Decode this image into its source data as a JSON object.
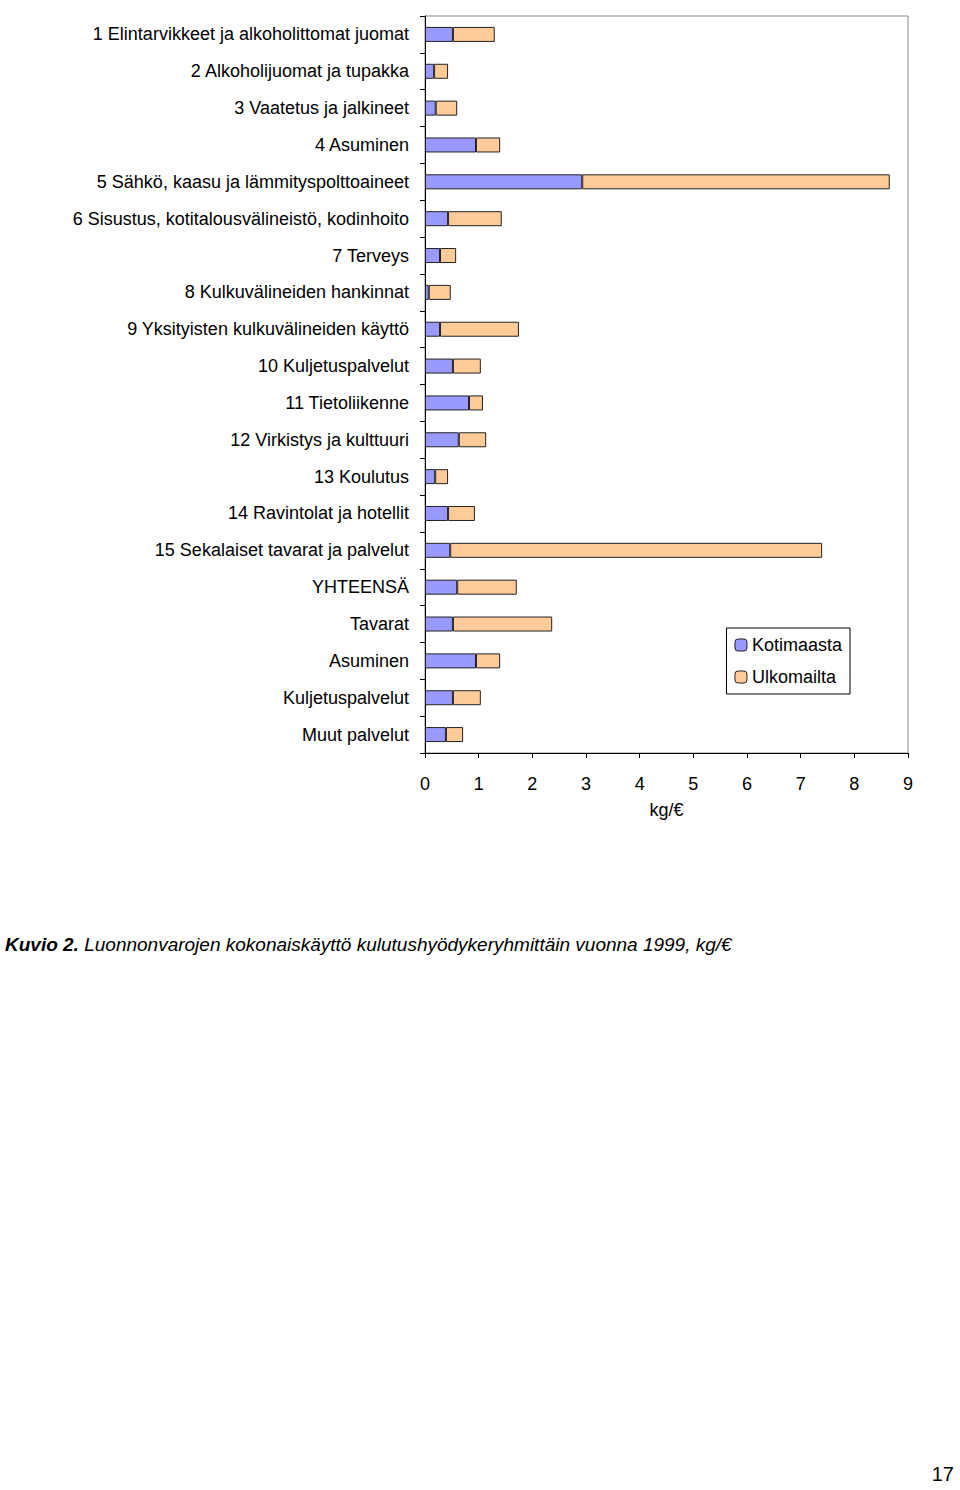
{
  "chart_data": {
    "type": "bar",
    "orientation": "horizontal",
    "stacked": true,
    "categories": [
      "1 Elintarvikkeet ja alkoholittomat juomat",
      "2 Alkoholijuomat ja tupakka",
      "3 Vaatetus ja jalkineet",
      "4 Asuminen",
      "5 Sähkö, kaasu ja lämmityspolttoaineet",
      "6 Sisustus, kotitalousvälineistö, kodinhoito",
      "7 Terveys",
      "8 Kulkuvälineiden hankinnat",
      "9 Yksityisten kulkuvälineiden käyttö",
      "10 Kuljetuspalvelut",
      "11 Tietoliikenne",
      "12 Virkistys ja kulttuuri",
      "13 Koulutus",
      "14 Ravintolat ja hotellit",
      "15 Sekalaiset tavarat ja palvelut",
      "YHTEENSÄ",
      "Tavarat",
      "Asuminen",
      "Kuljetuspalvelut",
      "Muut palvelut"
    ],
    "series": [
      {
        "name": "Kotimaasta",
        "color": "#9999ff",
        "values": [
          0.52,
          0.17,
          0.2,
          0.95,
          2.93,
          0.43,
          0.28,
          0.07,
          0.28,
          0.52,
          0.82,
          0.63,
          0.19,
          0.43,
          0.47,
          0.6,
          0.52,
          0.95,
          0.52,
          0.39
        ]
      },
      {
        "name": "Ulkomailta",
        "color": "#ffcc99",
        "values": [
          0.78,
          0.26,
          0.4,
          0.45,
          5.73,
          1.0,
          0.3,
          0.41,
          1.47,
          0.52,
          0.26,
          0.51,
          0.24,
          0.5,
          6.93,
          1.11,
          1.85,
          0.45,
          0.52,
          0.32
        ]
      }
    ],
    "x_label": "kg/€",
    "xlim": [
      0,
      9
    ],
    "xticks": [
      0,
      1,
      2,
      3,
      4,
      5,
      6,
      7,
      8,
      9
    ],
    "grid": false,
    "legend": "right"
  },
  "caption_label": "Kuvio 2.",
  "caption": "Luonnonvarojen kokonaiskäyttö kulutushyödykeryhmittäin vuonna 1999, kg/€",
  "page_number": 17
}
